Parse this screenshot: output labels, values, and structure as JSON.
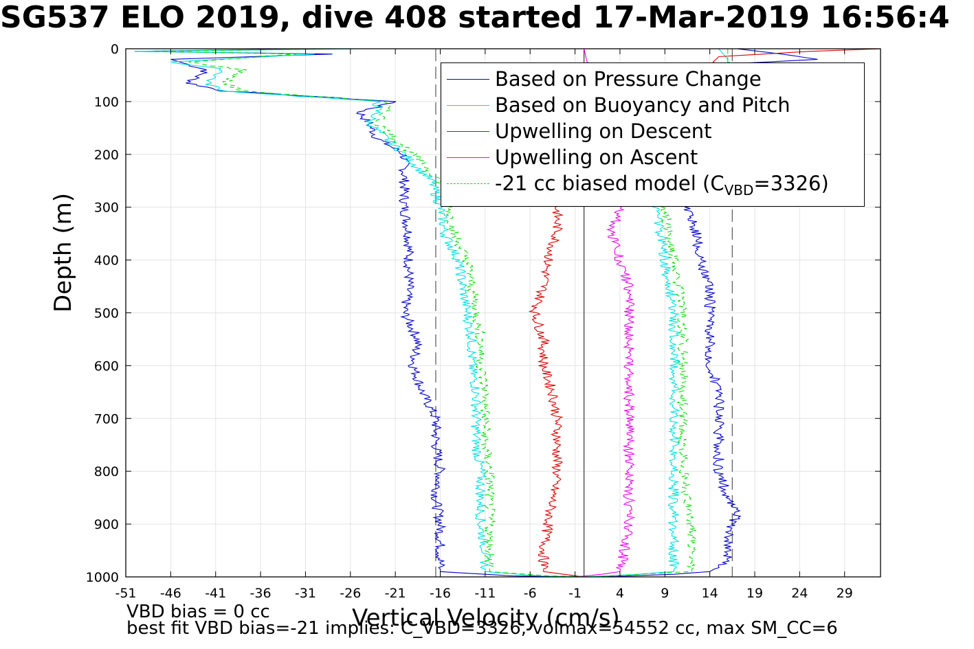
{
  "chart_data": {
    "type": "line",
    "title": "SG537 ELO 2019, dive 408 started 17-Mar-2019 16:56:4",
    "xlabel": "Vertical Velocity (cm/s)",
    "ylabel": "Depth (m)",
    "xlim": [
      -51,
      33
    ],
    "ylim": [
      0,
      1000
    ],
    "y_reversed": true,
    "grid": true,
    "legend_position": "top-right",
    "xticks": [
      -51,
      -46,
      -41,
      -36,
      -31,
      -26,
      -21,
      -16,
      -11,
      -6,
      -1,
      4,
      9,
      14,
      19,
      24,
      29
    ],
    "yticks": [
      0,
      100,
      200,
      300,
      400,
      500,
      600,
      700,
      800,
      900,
      1000
    ],
    "reference_lines": [
      {
        "x": -16.5,
        "style": "dashed",
        "color": "#555555"
      },
      {
        "x": 0,
        "style": "solid",
        "color": "#333333"
      },
      {
        "x": 16.5,
        "style": "dashed",
        "color": "#555555"
      }
    ],
    "series": [
      {
        "name": "Based on Pressure Change",
        "color": "#0000cc",
        "style": "solid",
        "descent": [
          [
            0,
            -30
          ],
          [
            5,
            -50
          ],
          [
            10,
            -28
          ],
          [
            20,
            -46
          ],
          [
            40,
            -42
          ],
          [
            65,
            -44
          ],
          [
            80,
            -40
          ],
          [
            100,
            -21
          ],
          [
            120,
            -25
          ],
          [
            140,
            -24
          ],
          [
            170,
            -23
          ],
          [
            200,
            -20
          ],
          [
            250,
            -20
          ],
          [
            300,
            -20
          ],
          [
            350,
            -19.5
          ],
          [
            400,
            -19.5
          ],
          [
            450,
            -19.5
          ],
          [
            500,
            -20
          ],
          [
            550,
            -18.5
          ],
          [
            600,
            -19
          ],
          [
            650,
            -18
          ],
          [
            700,
            -16.5
          ],
          [
            750,
            -16.5
          ],
          [
            800,
            -16
          ],
          [
            850,
            -16.5
          ],
          [
            900,
            -16
          ],
          [
            950,
            -16
          ],
          [
            990,
            -16
          ],
          [
            998,
            -8
          ],
          [
            1000,
            -2
          ]
        ],
        "ascent": [
          [
            1000,
            2
          ],
          [
            995,
            10
          ],
          [
            990,
            14
          ],
          [
            970,
            16
          ],
          [
            950,
            16
          ],
          [
            900,
            16.5
          ],
          [
            880,
            17
          ],
          [
            850,
            16
          ],
          [
            800,
            15
          ],
          [
            750,
            15
          ],
          [
            700,
            15
          ],
          [
            650,
            15
          ],
          [
            600,
            14
          ],
          [
            550,
            14
          ],
          [
            500,
            14
          ],
          [
            450,
            14
          ],
          [
            400,
            13
          ],
          [
            350,
            12.5
          ],
          [
            300,
            11.5
          ],
          [
            250,
            11
          ],
          [
            200,
            11
          ],
          [
            150,
            12
          ],
          [
            100,
            13
          ],
          [
            60,
            14
          ],
          [
            30,
            15
          ],
          [
            20,
            26
          ],
          [
            10,
            22
          ],
          [
            0,
            17
          ]
        ]
      },
      {
        "name": "Based on Buoyancy and Pitch",
        "color": "#00e0e0",
        "style": "solid",
        "descent": [
          [
            0,
            -25
          ],
          [
            5,
            -50
          ],
          [
            10,
            -30
          ],
          [
            25,
            -46
          ],
          [
            40,
            -40
          ],
          [
            65,
            -42
          ],
          [
            80,
            -40
          ],
          [
            100,
            -23
          ],
          [
            120,
            -23
          ],
          [
            140,
            -24
          ],
          [
            170,
            -22
          ],
          [
            200,
            -20
          ],
          [
            250,
            -17
          ],
          [
            300,
            -16
          ],
          [
            350,
            -15.5
          ],
          [
            400,
            -14
          ],
          [
            450,
            -13.5
          ],
          [
            500,
            -13
          ],
          [
            550,
            -12.5
          ],
          [
            600,
            -12.5
          ],
          [
            650,
            -12
          ],
          [
            700,
            -12
          ],
          [
            750,
            -12
          ],
          [
            800,
            -11.5
          ],
          [
            850,
            -11.5
          ],
          [
            900,
            -11.5
          ],
          [
            950,
            -11
          ],
          [
            990,
            -11
          ],
          [
            998,
            -5
          ],
          [
            1000,
            0
          ]
        ],
        "ascent": [
          [
            1000,
            0
          ],
          [
            995,
            6
          ],
          [
            990,
            10
          ],
          [
            950,
            10
          ],
          [
            900,
            10
          ],
          [
            850,
            10
          ],
          [
            800,
            10
          ],
          [
            750,
            10
          ],
          [
            700,
            10
          ],
          [
            650,
            10
          ],
          [
            600,
            10
          ],
          [
            550,
            10
          ],
          [
            500,
            10
          ],
          [
            450,
            9.5
          ],
          [
            400,
            9
          ],
          [
            350,
            8.5
          ],
          [
            300,
            8
          ],
          [
            250,
            9
          ],
          [
            200,
            10
          ],
          [
            150,
            12
          ],
          [
            100,
            14
          ],
          [
            50,
            16
          ],
          [
            20,
            16
          ],
          [
            0,
            15
          ]
        ]
      },
      {
        "name": "Upwelling on Descent",
        "color": "#dd0000",
        "style": "solid",
        "descent": [
          [
            0,
            33
          ],
          [
            5,
            25
          ],
          [
            10,
            20
          ],
          [
            15,
            15
          ],
          [
            300,
            -3
          ],
          [
            350,
            -3
          ],
          [
            400,
            -4
          ],
          [
            450,
            -4.5
          ],
          [
            500,
            -5.5
          ],
          [
            550,
            -4.5
          ],
          [
            600,
            -4.5
          ],
          [
            650,
            -3.5
          ],
          [
            700,
            -3
          ],
          [
            750,
            -3
          ],
          [
            800,
            -3
          ],
          [
            850,
            -3.5
          ],
          [
            900,
            -4
          ],
          [
            950,
            -4.5
          ],
          [
            990,
            -4.5
          ],
          [
            1000,
            0
          ]
        ]
      },
      {
        "name": "Upwelling on Ascent",
        "color": "#ee00ee",
        "style": "solid",
        "ascent": [
          [
            1000,
            -1
          ],
          [
            995,
            2
          ],
          [
            990,
            4
          ],
          [
            950,
            4.5
          ],
          [
            900,
            5
          ],
          [
            850,
            5
          ],
          [
            800,
            5
          ],
          [
            750,
            5
          ],
          [
            700,
            5
          ],
          [
            650,
            5
          ],
          [
            600,
            5
          ],
          [
            550,
            5
          ],
          [
            500,
            5
          ],
          [
            450,
            5
          ],
          [
            400,
            4
          ],
          [
            350,
            3
          ],
          [
            300,
            4
          ],
          [
            0,
            0
          ]
        ]
      },
      {
        "name": "-21 cc biased model (C",
        "name_sub": "VBD",
        "name_tail": "=3326)",
        "color": "#00dd00",
        "style": "dashed",
        "descent": [
          [
            0,
            -28
          ],
          [
            5,
            -48
          ],
          [
            10,
            -32
          ],
          [
            25,
            -44
          ],
          [
            40,
            -38
          ],
          [
            65,
            -40
          ],
          [
            80,
            -38
          ],
          [
            100,
            -22
          ],
          [
            120,
            -22
          ],
          [
            140,
            -23
          ],
          [
            170,
            -21
          ],
          [
            200,
            -19
          ],
          [
            250,
            -16
          ],
          [
            300,
            -15
          ],
          [
            350,
            -14.5
          ],
          [
            400,
            -13
          ],
          [
            450,
            -12.5
          ],
          [
            500,
            -12
          ],
          [
            550,
            -11.5
          ],
          [
            600,
            -11.5
          ],
          [
            650,
            -11
          ],
          [
            700,
            -11
          ],
          [
            750,
            -11
          ],
          [
            800,
            -10.5
          ],
          [
            850,
            -10.5
          ],
          [
            900,
            -10.5
          ],
          [
            950,
            -10.5
          ],
          [
            990,
            -10.5
          ],
          [
            998,
            -4
          ],
          [
            1000,
            1
          ]
        ],
        "ascent": [
          [
            1000,
            1
          ],
          [
            995,
            6
          ],
          [
            990,
            12
          ],
          [
            950,
            12
          ],
          [
            900,
            12
          ],
          [
            850,
            11.5
          ],
          [
            800,
            11
          ],
          [
            750,
            11
          ],
          [
            700,
            11
          ],
          [
            650,
            11
          ],
          [
            600,
            11
          ],
          [
            550,
            11
          ],
          [
            500,
            11
          ],
          [
            450,
            10.5
          ],
          [
            400,
            10
          ],
          [
            350,
            9.5
          ],
          [
            300,
            9
          ],
          [
            250,
            10
          ],
          [
            200,
            11
          ],
          [
            150,
            13
          ],
          [
            100,
            15
          ],
          [
            50,
            16
          ],
          [
            20,
            16
          ],
          [
            0,
            16
          ]
        ]
      }
    ]
  },
  "notes": {
    "vbd_bias": "VBD bias = 0 cc",
    "best_fit": "best fit VBD bias=-21 implies: C_VBD=3326, volmax=54552 cc, max SM_CC=6"
  }
}
